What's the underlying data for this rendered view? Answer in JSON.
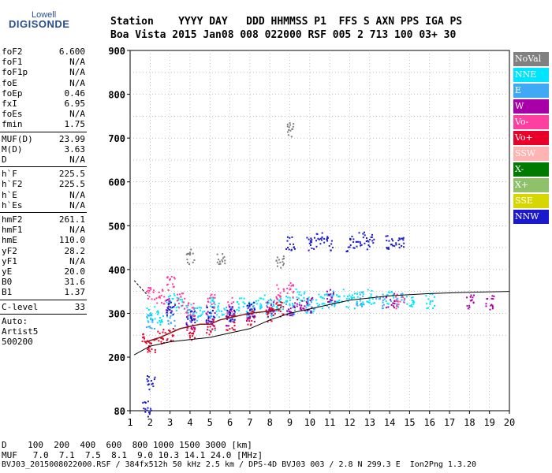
{
  "logo": {
    "line1": "Lowell",
    "line2": "DIGISONDE"
  },
  "header": {
    "row1": "Station    YYYY DAY   DDD HHMMSS P1  FFS S AXN PPS IGA PS",
    "row2": "Boa Vista 2015 Jan08 008 022000 RSF 005 2 713 100 03+ 30"
  },
  "params": [
    {
      "k": "foF2",
      "v": "6.600"
    },
    {
      "k": "foF1",
      "v": "N/A"
    },
    {
      "k": "foF1p",
      "v": "N/A"
    },
    {
      "k": "foE",
      "v": "N/A"
    },
    {
      "k": "foEp",
      "v": "0.46"
    },
    {
      "k": "fxI",
      "v": "6.95"
    },
    {
      "k": "foEs",
      "v": "N/A"
    },
    {
      "k": "fmin",
      "v": "1.75"
    },
    {
      "sep": true
    },
    {
      "k": "MUF(D)",
      "v": "23.99"
    },
    {
      "k": "M(D)",
      "v": "3.63"
    },
    {
      "k": "D",
      "v": "N/A"
    },
    {
      "sep": true
    },
    {
      "k": "h`F",
      "v": "225.5"
    },
    {
      "k": "h`F2",
      "v": "225.5"
    },
    {
      "k": "h`E",
      "v": "N/A"
    },
    {
      "k": "h`Es",
      "v": "N/A"
    },
    {
      "sep": true
    },
    {
      "k": "hmF2",
      "v": "261.1"
    },
    {
      "k": "hmF1",
      "v": "N/A"
    },
    {
      "k": "hmE",
      "v": "110.0"
    },
    {
      "k": "yF2",
      "v": "28.2"
    },
    {
      "k": "yF1",
      "v": "N/A"
    },
    {
      "k": "yE",
      "v": "20.0"
    },
    {
      "k": "B0",
      "v": "31.6"
    },
    {
      "k": "B1",
      "v": "1.37"
    },
    {
      "sep": true
    },
    {
      "k": "C-level",
      "v": "33"
    },
    {
      "sep": true
    },
    {
      "txt": "Auto:"
    },
    {
      "txt": "Artist5"
    },
    {
      "txt": "500200"
    }
  ],
  "legend": [
    {
      "label": "NoVal",
      "color": "#808080"
    },
    {
      "label": "NNE",
      "color": "#00e5ff"
    },
    {
      "label": "E",
      "color": "#3fa9f5"
    },
    {
      "label": "W",
      "color": "#a800a8"
    },
    {
      "label": "Vo-",
      "color": "#ff3fa0"
    },
    {
      "label": "Vo+",
      "color": "#e8002a"
    },
    {
      "label": "SSW",
      "color": "#ffb3b3"
    },
    {
      "label": "X-",
      "color": "#007a00"
    },
    {
      "label": "X+",
      "color": "#8fc16a"
    },
    {
      "label": "SSE",
      "color": "#d6d600"
    },
    {
      "label": "NNW",
      "color": "#1a1acc"
    }
  ],
  "footer": {
    "d_row": "D    100  200  400  600  800 1000 1500 3000 [km]",
    "muf_row": "MUF   7.0  7.1  7.5  8.1  9.0 10.3 14.1 24.0 [MHz]",
    "info": "BVJ03_2015008022000.RSF / 384fx512h 50 kHz 2.5 km / DPS-4D BVJ03 003 / 2.8 N 299.3 E  Ion2Png 1.3.20"
  },
  "chart_data": {
    "type": "scatter",
    "title": "",
    "xlabel": "",
    "ylabel": "",
    "xlim": [
      1,
      20
    ],
    "ylim": [
      80,
      900
    ],
    "x_ticks": [
      1,
      2,
      3,
      4,
      5,
      6,
      7,
      8,
      9,
      10,
      11,
      12,
      13,
      14,
      15,
      16,
      17,
      18,
      19,
      20
    ],
    "y_ticks": [
      80,
      200,
      300,
      400,
      500,
      600,
      700,
      800,
      900
    ],
    "grid": true,
    "legend_position": "right",
    "series": [
      {
        "name": "NNE",
        "points": [
          [
            2.0,
            300
          ],
          [
            2.5,
            290
          ],
          [
            3.0,
            330
          ],
          [
            3.5,
            320
          ],
          [
            4.0,
            310
          ],
          [
            4.5,
            300
          ],
          [
            5.0,
            320
          ],
          [
            5.5,
            310
          ],
          [
            6.0,
            300
          ],
          [
            6.5,
            320
          ],
          [
            7.0,
            310
          ],
          [
            7.5,
            330
          ],
          [
            8.0,
            310
          ],
          [
            8.5,
            320
          ],
          [
            9.0,
            330
          ],
          [
            9.5,
            340
          ],
          [
            10.0,
            320
          ],
          [
            10.5,
            330
          ],
          [
            11.0,
            335
          ],
          [
            11.5,
            340
          ],
          [
            12.0,
            330
          ],
          [
            12.5,
            335
          ],
          [
            13.0,
            340
          ],
          [
            14.0,
            335
          ],
          [
            15.0,
            330
          ],
          [
            16.0,
            330
          ]
        ]
      },
      {
        "name": "E",
        "points": [
          [
            2.0,
            280
          ],
          [
            3.0,
            290
          ],
          [
            4.0,
            300
          ],
          [
            5.0,
            280
          ],
          [
            6.0,
            300
          ],
          [
            7.0,
            310
          ],
          [
            8.0,
            320
          ],
          [
            9.0,
            310
          ],
          [
            10.0,
            320
          ],
          [
            11.0,
            330
          ],
          [
            12.5,
            335
          ],
          [
            13.5,
            330
          ],
          [
            14.5,
            330
          ]
        ]
      },
      {
        "name": "W",
        "points": [
          [
            3.0,
            320
          ],
          [
            4.0,
            280
          ],
          [
            5.0,
            290
          ],
          [
            6.0,
            290
          ],
          [
            7.0,
            300
          ],
          [
            8.0,
            310
          ],
          [
            9.0,
            310
          ],
          [
            9.5,
            320
          ],
          [
            10.0,
            320
          ],
          [
            11.0,
            345
          ],
          [
            14.0,
            330
          ],
          [
            18.0,
            330
          ],
          [
            19.0,
            325
          ]
        ]
      },
      {
        "name": "Vo-",
        "points": [
          [
            2.0,
            350
          ],
          [
            2.5,
            340
          ],
          [
            3.0,
            370
          ],
          [
            3.5,
            330
          ],
          [
            4.0,
            310
          ],
          [
            5.0,
            330
          ],
          [
            6.0,
            320
          ],
          [
            8.5,
            350
          ],
          [
            9.0,
            355
          ],
          [
            14.5,
            330
          ]
        ]
      },
      {
        "name": "Vo+",
        "points": [
          [
            1.8,
            240
          ],
          [
            2.0,
            230
          ],
          [
            2.5,
            250
          ],
          [
            3.0,
            250
          ],
          [
            4.0,
            255
          ],
          [
            5.0,
            270
          ],
          [
            6.0,
            280
          ],
          [
            7.0,
            290
          ],
          [
            8.0,
            300
          ],
          [
            8.5,
            310
          ]
        ]
      },
      {
        "name": "NNW",
        "points": [
          [
            1.8,
            85
          ],
          [
            2.0,
            145
          ],
          [
            3.0,
            310
          ],
          [
            4.0,
            290
          ],
          [
            5.0,
            300
          ],
          [
            6.0,
            300
          ],
          [
            7.0,
            310
          ],
          [
            9.0,
            460
          ],
          [
            10.0,
            460
          ],
          [
            10.5,
            470
          ],
          [
            11.0,
            460
          ],
          [
            12.0,
            460
          ],
          [
            12.5,
            470
          ],
          [
            13.0,
            465
          ],
          [
            14.0,
            465
          ],
          [
            14.5,
            460
          ]
        ]
      },
      {
        "name": "NoVal",
        "points": [
          [
            4.0,
            430
          ],
          [
            5.5,
            430
          ],
          [
            8.5,
            420
          ],
          [
            9.0,
            720
          ]
        ]
      }
    ],
    "curves": [
      {
        "name": "virtual-height-trace",
        "x": [
          1.2,
          2.0,
          3.0,
          4.0,
          5.0,
          6.0,
          7.0,
          8.0,
          9.0,
          10.0,
          11.0,
          12.0,
          13.0,
          14.0,
          16.0,
          18.0,
          20.0
        ],
        "y": [
          205,
          225,
          235,
          240,
          245,
          255,
          265,
          285,
          300,
          310,
          320,
          330,
          335,
          340,
          345,
          348,
          350
        ]
      },
      {
        "name": "profile-upper",
        "x": [
          1.2,
          1.6,
          1.9
        ],
        "y": [
          375,
          355,
          340
        ]
      },
      {
        "name": "profile",
        "x": [
          1.8,
          2.5,
          3.0,
          3.5,
          4.0,
          4.5,
          5.0,
          5.5,
          6.0,
          6.5,
          7.0,
          8.0,
          8.5
        ],
        "y": [
          235,
          245,
          255,
          265,
          270,
          275,
          275,
          285,
          290,
          295,
          300,
          305,
          310
        ]
      }
    ]
  }
}
